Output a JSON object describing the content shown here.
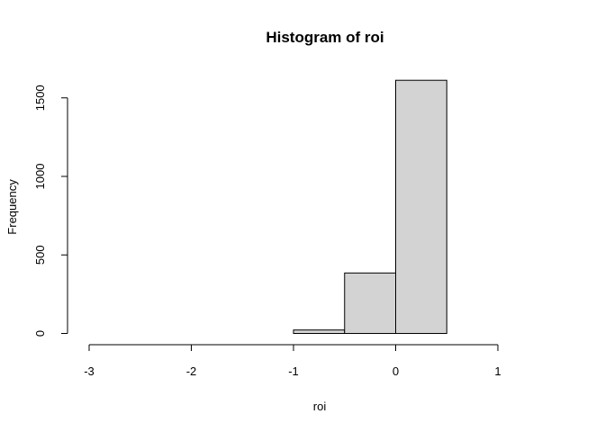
{
  "chart_data": {
    "type": "bar",
    "title": "Histogram of roi",
    "xlabel": "roi",
    "ylabel": "Frequency",
    "bins": [
      {
        "start": -3.0,
        "end": -2.5,
        "count": 0
      },
      {
        "start": -2.5,
        "end": -2.0,
        "count": 0
      },
      {
        "start": -2.0,
        "end": -1.5,
        "count": 0
      },
      {
        "start": -1.5,
        "end": -1.0,
        "count": 0
      },
      {
        "start": -1.0,
        "end": -0.5,
        "count": 22
      },
      {
        "start": -0.5,
        "end": 0.0,
        "count": 385
      },
      {
        "start": 0.0,
        "end": 0.5,
        "count": 1612
      },
      {
        "start": 0.5,
        "end": 1.0,
        "count": 0
      },
      {
        "start": 1.0,
        "end": 1.5,
        "count": 0
      }
    ],
    "xlim": [
      -3,
      1.5
    ],
    "ylim": [
      0,
      1612
    ],
    "x_ticks": [
      -3,
      -2,
      -1,
      0,
      1
    ],
    "y_ticks": [
      0,
      500,
      1000,
      1500
    ],
    "bar_fill": "#d3d3d3",
    "bar_stroke": "#000000",
    "grid": false
  }
}
